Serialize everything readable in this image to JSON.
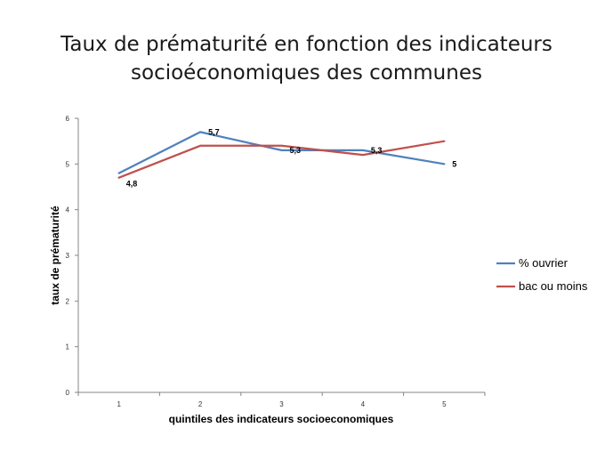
{
  "slide": {
    "title_line1": "Taux de prématurité en fonction des indicateurs",
    "title_line2": "socioéconomiques des communes"
  },
  "chart_data": {
    "type": "line",
    "title": "Taux de prématurité en fonction des indicateurs socioéconomiques des communes",
    "xlabel": "quintiles des indicateurs socioeconomiques",
    "ylabel": "taux de prématurité",
    "categories": [
      "1",
      "2",
      "3",
      "4",
      "5"
    ],
    "ylim": [
      0,
      6
    ],
    "yticks": [
      "0",
      "1",
      "2",
      "3",
      "4",
      "5",
      "6"
    ],
    "grid": false,
    "legend_position": "right",
    "series": [
      {
        "name": "% ouvrier",
        "color": "#4F81BD",
        "values": [
          4.8,
          5.7,
          5.3,
          5.3,
          5.0
        ],
        "data_labels": [
          "4,8",
          "5,7",
          "5,3",
          "5,3",
          "5"
        ]
      },
      {
        "name": "bac ou moins",
        "color": "#C0504D",
        "values": [
          4.7,
          5.4,
          5.4,
          5.2,
          5.5
        ]
      }
    ]
  }
}
